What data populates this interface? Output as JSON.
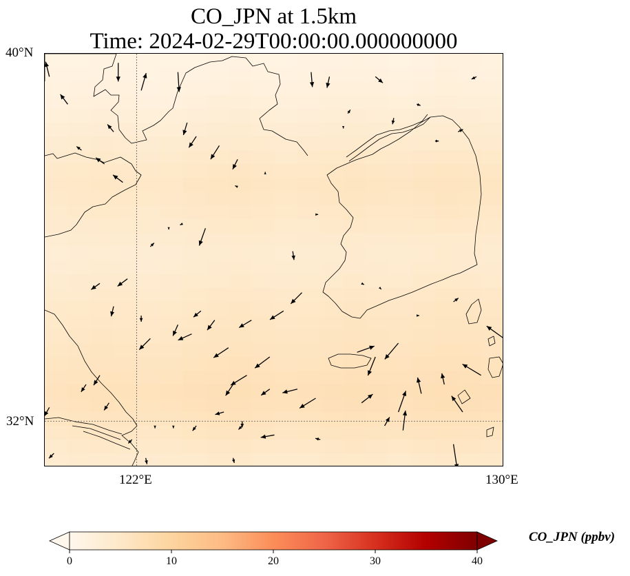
{
  "title": {
    "line1": "CO_JPN at 1.5km",
    "line2": "Time: 2024-02-29T00:00:00.000000000"
  },
  "map": {
    "lat_range": [
      31,
      40
    ],
    "lon_range": [
      120,
      130
    ],
    "lat_ticks": [
      "40°N",
      "32°N"
    ],
    "lon_ticks": [
      "122°E",
      "130°E"
    ],
    "gridlines": {
      "lon": 122,
      "lat": 32,
      "style": "dotted"
    },
    "field_variable": "CO_JPN",
    "field_units": "ppbv",
    "coast_color": "#000000"
  },
  "colorbar": {
    "label": "CO_JPN (ppbv)",
    "ticks": [
      "0",
      "10",
      "20",
      "30",
      "40"
    ],
    "range": [
      0,
      40
    ],
    "extend": "both",
    "colormap": "OrRd",
    "colors": [
      "#fff7ec",
      "#fee8c8",
      "#fdd49e",
      "#fdbb84",
      "#fc8d59",
      "#ef6548",
      "#d7301f",
      "#b30000",
      "#7f0000"
    ]
  },
  "wind_vectors": [
    [
      120.1,
      39.5,
      -0.3,
      1.2
    ],
    [
      120.5,
      38.9,
      -0.6,
      0.8
    ],
    [
      121.6,
      39.8,
      0.0,
      -1.5
    ],
    [
      122.1,
      39.2,
      0.4,
      1.4
    ],
    [
      121.5,
      38.3,
      -0.5,
      0.6
    ],
    [
      120.8,
      37.9,
      -0.4,
      0.3
    ],
    [
      121.3,
      37.6,
      -0.7,
      0.5
    ],
    [
      121.7,
      37.2,
      -0.8,
      0.6
    ],
    [
      122.9,
      39.6,
      0.1,
      -1.6
    ],
    [
      123.1,
      38.5,
      -0.3,
      -1.0
    ],
    [
      123.3,
      38.2,
      -0.6,
      -0.9
    ],
    [
      123.8,
      38.0,
      -0.7,
      -1.1
    ],
    [
      124.2,
      37.7,
      -0.4,
      -0.8
    ],
    [
      124.8,
      37.4,
      0.0,
      0.1
    ],
    [
      124.2,
      37.1,
      -0.2,
      0.1
    ],
    [
      125.8,
      39.6,
      0.1,
      -1.2
    ],
    [
      126.2,
      39.5,
      -0.2,
      -0.9
    ],
    [
      126.6,
      38.7,
      0.2,
      0.3
    ],
    [
      126.5,
      38.4,
      0.0,
      -0.1
    ],
    [
      127.2,
      39.5,
      0.6,
      -0.5
    ],
    [
      127.6,
      38.6,
      -0.1,
      -0.5
    ],
    [
      128.1,
      38.9,
      0.3,
      -0.1
    ],
    [
      128.5,
      38.1,
      0.3,
      0.0
    ],
    [
      129.0,
      38.3,
      0.4,
      0.2
    ],
    [
      129.4,
      39.5,
      -0.4,
      -0.2
    ],
    [
      121.8,
      35.1,
      -0.8,
      -0.6
    ],
    [
      122.3,
      35.8,
      0.3,
      0.3
    ],
    [
      123.5,
      36.2,
      -0.5,
      -1.4
    ],
    [
      123.0,
      36.3,
      -0.2,
      -0.1
    ],
    [
      122.7,
      36.2,
      0.0,
      -0.1
    ],
    [
      121.2,
      35.0,
      -0.7,
      -0.5
    ],
    [
      121.5,
      34.5,
      -0.2,
      -0.8
    ],
    [
      122.1,
      34.3,
      0.0,
      -0.5
    ],
    [
      122.9,
      34.1,
      -0.4,
      -0.9
    ],
    [
      123.7,
      34.2,
      -0.6,
      -0.8
    ],
    [
      124.5,
      34.2,
      -1.0,
      -0.6
    ],
    [
      125.2,
      34.4,
      -1.1,
      -0.7
    ],
    [
      125.4,
      35.7,
      0.1,
      -0.7
    ],
    [
      125.9,
      36.5,
      0.2,
      0.0
    ],
    [
      126.9,
      35.0,
      0.2,
      -0.1
    ],
    [
      127.3,
      34.9,
      0.1,
      -0.1
    ],
    [
      128.1,
      34.3,
      0.2,
      0.0
    ],
    [
      128.9,
      34.6,
      0.4,
      0.3
    ],
    [
      122.3,
      33.8,
      -0.9,
      -0.9
    ],
    [
      123.2,
      33.9,
      -1.1,
      -0.5
    ],
    [
      124.0,
      33.6,
      -1.2,
      -0.8
    ],
    [
      124.4,
      33.0,
      -1.3,
      -0.8
    ],
    [
      124.9,
      33.4,
      -1.2,
      -0.9
    ],
    [
      125.6,
      34.8,
      -0.9,
      -0.9
    ],
    [
      127.2,
      33.4,
      -0.6,
      -1.5
    ],
    [
      127.7,
      33.7,
      -1.1,
      -1.3
    ],
    [
      125.9,
      32.5,
      -1.3,
      -0.8
    ],
    [
      125.5,
      32.7,
      -1.2,
      -0.3
    ],
    [
      126.9,
      32.4,
      0.9,
      0.7
    ],
    [
      126.8,
      33.5,
      1.4,
      0.5
    ],
    [
      127.7,
      32.2,
      0.6,
      1.7
    ],
    [
      128.2,
      32.6,
      -0.3,
      1.3
    ],
    [
      129.1,
      32.2,
      -0.9,
      1.3
    ],
    [
      129.5,
      33.0,
      -1.5,
      0.9
    ],
    [
      130.0,
      33.8,
      -1.4,
      1.0
    ],
    [
      128.9,
      31.5,
      0.3,
      -2.0
    ],
    [
      127.8,
      31.8,
      0.2,
      1.6
    ],
    [
      127.4,
      31.9,
      0.4,
      0.7
    ],
    [
      125.0,
      31.7,
      -1.1,
      -0.2
    ],
    [
      124.3,
      31.9,
      -0.3,
      -0.3
    ],
    [
      123.9,
      32.2,
      -0.7,
      -0.2
    ],
    [
      122.4,
      31.9,
      0.0,
      -0.2
    ],
    [
      122.8,
      31.9,
      0.0,
      -0.2
    ],
    [
      121.4,
      32.4,
      -0.4,
      -0.6
    ],
    [
      120.9,
      32.8,
      -0.4,
      -0.6
    ],
    [
      120.1,
      32.3,
      -0.4,
      -0.7
    ],
    [
      121.2,
      33.0,
      -0.5,
      -0.8
    ],
    [
      121.9,
      31.6,
      -0.3,
      -0.3
    ],
    [
      123.3,
      31.9,
      -0.3,
      -0.4
    ],
    [
      124.1,
      32.8,
      -0.6,
      -0.9
    ],
    [
      124.9,
      32.7,
      -0.7,
      -0.5
    ],
    [
      124.3,
      32.0,
      0.0,
      -0.5
    ],
    [
      126.0,
      31.6,
      -0.4,
      0.1
    ],
    [
      124.1,
      31.2,
      0.1,
      -0.4
    ],
    [
      122.2,
      31.2,
      0.1,
      -0.5
    ],
    [
      120.2,
      31.3,
      -0.4,
      -0.4
    ],
    [
      129.9,
      31.0,
      0.1,
      -0.3
    ],
    [
      128.7,
      32.8,
      -0.2,
      0.9
    ],
    [
      123.4,
      34.4,
      -0.6,
      -0.5
    ]
  ],
  "co_field": [
    [
      1.5,
      1.5,
      1.6,
      1.5,
      1.4,
      1.5,
      1.4,
      1.6,
      1.7,
      1.5,
      1.4,
      1.6,
      1.7,
      1.8,
      1.6,
      1.5,
      1.7,
      1.9,
      2.0,
      1.8
    ],
    [
      1.6,
      1.7,
      1.8,
      1.6,
      1.5,
      1.6,
      1.7,
      1.8,
      1.9,
      1.8,
      1.6,
      1.8,
      2.0,
      2.1,
      1.9,
      1.8,
      2.0,
      2.2,
      2.1,
      2.0
    ],
    [
      1.8,
      2.0,
      2.0,
      1.9,
      1.7,
      1.8,
      2.0,
      2.1,
      2.2,
      2.1,
      1.9,
      2.1,
      2.3,
      2.4,
      2.2,
      2.1,
      2.3,
      2.5,
      2.4,
      2.3
    ],
    [
      2.1,
      2.3,
      2.4,
      2.3,
      2.0,
      2.1,
      2.4,
      2.6,
      2.7,
      2.5,
      2.3,
      2.4,
      2.6,
      2.8,
      2.6,
      2.5,
      2.7,
      2.9,
      2.8,
      2.6
    ],
    [
      2.5,
      2.7,
      2.9,
      2.8,
      2.5,
      2.6,
      2.9,
      3.1,
      3.2,
      3.0,
      2.8,
      2.9,
      3.1,
      3.3,
      3.1,
      3.0,
      3.2,
      3.4,
      3.3,
      3.1
    ],
    [
      3.0,
      3.2,
      3.4,
      3.3,
      3.0,
      3.1,
      3.4,
      3.6,
      3.7,
      3.5,
      3.3,
      3.4,
      3.6,
      3.8,
      3.6,
      3.5,
      3.7,
      3.9,
      3.8,
      3.6
    ],
    [
      3.6,
      3.8,
      4.0,
      3.9,
      3.6,
      3.7,
      4.0,
      4.2,
      4.3,
      4.1,
      3.9,
      4.0,
      4.2,
      4.4,
      4.2,
      4.1,
      4.3,
      4.5,
      4.4,
      4.2
    ],
    [
      4.2,
      4.4,
      4.6,
      4.5,
      4.2,
      4.3,
      4.6,
      4.8,
      4.9,
      4.7,
      4.5,
      4.6,
      4.8,
      5.0,
      4.8,
      4.7,
      4.9,
      5.1,
      5.0,
      4.8
    ],
    [
      4.6,
      4.8,
      5.0,
      4.9,
      4.7,
      4.8,
      5.1,
      5.3,
      5.4,
      5.2,
      5.0,
      5.1,
      5.3,
      5.5,
      5.3,
      5.2,
      5.4,
      5.6,
      5.5,
      5.3
    ],
    [
      4.9,
      5.1,
      5.3,
      5.2,
      5.0,
      5.1,
      5.4,
      5.6,
      5.7,
      5.5,
      5.3,
      5.4,
      5.6,
      5.8,
      5.6,
      5.5,
      5.7,
      5.9,
      5.8,
      5.6
    ],
    [
      4.7,
      4.9,
      5.1,
      5.0,
      4.8,
      4.9,
      5.2,
      5.4,
      5.5,
      5.3,
      5.1,
      5.2,
      5.4,
      5.6,
      5.4,
      5.3,
      5.5,
      5.7,
      5.6,
      5.4
    ],
    [
      4.4,
      4.6,
      4.8,
      4.7,
      4.5,
      4.6,
      4.9,
      5.1,
      5.2,
      5.0,
      4.8,
      4.9,
      5.1,
      5.3,
      5.1,
      5.0,
      5.2,
      5.4,
      5.3,
      5.1
    ],
    [
      4.0,
      4.2,
      4.4,
      4.3,
      4.1,
      4.2,
      4.5,
      4.7,
      4.8,
      4.6,
      4.4,
      4.5,
      4.7,
      4.9,
      4.7,
      4.6,
      4.8,
      5.0,
      4.9,
      4.7
    ],
    [
      3.5,
      3.7,
      3.9,
      3.8,
      3.6,
      3.7,
      4.0,
      4.2,
      4.3,
      4.1,
      3.9,
      4.0,
      4.2,
      4.4,
      4.2,
      4.1,
      4.3,
      4.5,
      4.4,
      4.2
    ],
    [
      3.1,
      3.3,
      3.5,
      3.4,
      3.2,
      3.3,
      3.6,
      3.8,
      3.9,
      3.7,
      3.5,
      3.6,
      3.8,
      4.0,
      3.8,
      3.7,
      3.9,
      4.1,
      4.0,
      3.8
    ],
    [
      3.3,
      3.5,
      3.7,
      3.6,
      3.4,
      3.5,
      3.8,
      4.0,
      4.1,
      3.9,
      3.7,
      3.8,
      4.0,
      4.2,
      4.0,
      3.9,
      4.1,
      4.3,
      4.2,
      4.0
    ],
    [
      3.8,
      4.0,
      4.2,
      4.1,
      3.9,
      4.0,
      4.3,
      4.5,
      4.6,
      4.4,
      4.2,
      4.3,
      4.5,
      4.7,
      4.5,
      4.4,
      4.6,
      4.8,
      4.7,
      4.5
    ],
    [
      4.3,
      4.5,
      4.7,
      4.6,
      4.4,
      4.5,
      4.8,
      5.0,
      5.1,
      4.9,
      4.7,
      4.8,
      5.0,
      5.2,
      5.0,
      4.9,
      5.1,
      5.3,
      5.2,
      5.0
    ],
    [
      4.6,
      4.8,
      5.0,
      4.9,
      4.7,
      4.8,
      5.1,
      5.3,
      5.4,
      5.2,
      5.0,
      5.1,
      5.3,
      5.5,
      5.3,
      5.2,
      5.4,
      5.6,
      5.5,
      5.3
    ],
    [
      4.8,
      5.0,
      5.2,
      5.1,
      4.9,
      5.0,
      5.3,
      5.5,
      5.6,
      5.4,
      5.2,
      5.3,
      5.5,
      5.7,
      5.5,
      5.4,
      5.6,
      5.8,
      5.7,
      5.5
    ],
    [
      5.0,
      5.2,
      5.4,
      5.3,
      5.1,
      5.2,
      5.5,
      5.7,
      5.8,
      5.6,
      5.4,
      5.5,
      5.7,
      5.9,
      5.7,
      5.6,
      5.8,
      6.0,
      5.9,
      5.7
    ],
    [
      5.3,
      5.5,
      5.7,
      5.6,
      5.4,
      5.5,
      5.8,
      6.0,
      6.1,
      5.9,
      5.7,
      5.8,
      6.0,
      6.2,
      6.0,
      5.9,
      6.1,
      6.3,
      6.2,
      6.0
    ],
    [
      5.6,
      5.8,
      6.0,
      5.9,
      5.7,
      5.8,
      6.1,
      6.3,
      6.4,
      6.2,
      6.0,
      6.1,
      6.3,
      6.5,
      6.3,
      6.2,
      6.4,
      6.6,
      6.5,
      6.3
    ],
    [
      5.9,
      6.1,
      6.3,
      6.2,
      6.0,
      6.1,
      6.4,
      6.6,
      6.7,
      6.5,
      6.3,
      6.4,
      6.6,
      6.8,
      6.6,
      6.5,
      6.7,
      6.9,
      6.8,
      6.6
    ],
    [
      6.2,
      6.4,
      6.6,
      6.5,
      6.3,
      6.4,
      6.7,
      6.9,
      7.0,
      6.8,
      6.6,
      6.7,
      6.9,
      7.1,
      6.9,
      6.8,
      7.0,
      7.2,
      7.1,
      6.9
    ],
    [
      6.0,
      6.2,
      6.4,
      6.3,
      6.1,
      6.2,
      6.5,
      6.7,
      6.8,
      6.6,
      6.4,
      6.5,
      6.7,
      6.9,
      6.7,
      6.6,
      6.8,
      7.0,
      6.9,
      6.7
    ],
    [
      5.6,
      5.8,
      6.0,
      5.9,
      5.7,
      5.8,
      6.1,
      6.3,
      6.4,
      6.2,
      6.0,
      6.1,
      6.3,
      6.5,
      6.3,
      6.2,
      6.4,
      6.6,
      6.5,
      6.3
    ],
    [
      5.1,
      5.3,
      5.5,
      5.4,
      5.2,
      5.3,
      5.6,
      5.8,
      5.9,
      5.7,
      5.5,
      5.6,
      5.8,
      6.0,
      5.8,
      5.7,
      5.9,
      6.1,
      6.0,
      5.8
    ],
    [
      4.5,
      4.7,
      4.9,
      4.8,
      4.6,
      4.7,
      5.0,
      5.2,
      5.3,
      5.1,
      4.9,
      5.0,
      5.2,
      5.4,
      5.2,
      5.1,
      5.3,
      5.5,
      5.4,
      5.2
    ],
    [
      3.9,
      4.1,
      4.3,
      4.2,
      4.0,
      4.1,
      4.4,
      4.6,
      4.7,
      4.5,
      4.3,
      4.4,
      4.6,
      4.8,
      4.6,
      4.5,
      4.7,
      4.9,
      4.8,
      4.6
    ]
  ]
}
